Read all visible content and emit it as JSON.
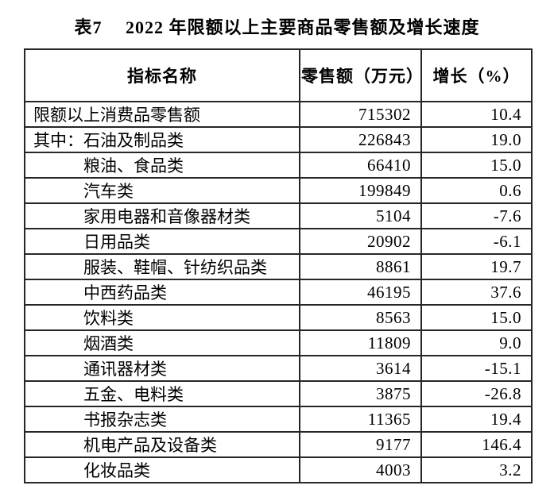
{
  "title": "表7　 2022 年限额以上主要商品零售额及增长速度",
  "table": {
    "headers": [
      "指标名称",
      "零售额（万元）",
      "增长（%）"
    ],
    "rows": [
      {
        "name": "限额以上消费品零售额",
        "indent": false,
        "sales": "715302",
        "growth": "10.4"
      },
      {
        "name": "其中：石油及制品类",
        "indent": false,
        "sales": "226843",
        "growth": "19.0"
      },
      {
        "name": "粮油、食品类",
        "indent": true,
        "sales": "66410",
        "growth": "15.0"
      },
      {
        "name": "汽车类",
        "indent": true,
        "sales": "199849",
        "growth": "0.6"
      },
      {
        "name": "家用电器和音像器材类",
        "indent": true,
        "sales": "5104",
        "growth": "-7.6"
      },
      {
        "name": "日用品类",
        "indent": true,
        "sales": "20902",
        "growth": "-6.1"
      },
      {
        "name": "服装、鞋帽、针纺织品类",
        "indent": true,
        "sales": "8861",
        "growth": "19.7"
      },
      {
        "name": "中西药品类",
        "indent": true,
        "sales": "46195",
        "growth": "37.6"
      },
      {
        "name": "饮料类",
        "indent": true,
        "sales": "8563",
        "growth": "15.0"
      },
      {
        "name": "烟酒类",
        "indent": true,
        "sales": "11809",
        "growth": "9.0"
      },
      {
        "name": "通讯器材类",
        "indent": true,
        "sales": "3614",
        "growth": "-15.1"
      },
      {
        "name": "五金、电料类",
        "indent": true,
        "sales": "3875",
        "growth": "-26.8"
      },
      {
        "name": "书报杂志类",
        "indent": true,
        "sales": "11365",
        "growth": "19.4"
      },
      {
        "name": "机电产品及设备类",
        "indent": true,
        "sales": "9177",
        "growth": "146.4"
      },
      {
        "name": "化妆品类",
        "indent": true,
        "sales": "4003",
        "growth": "3.2"
      }
    ]
  }
}
